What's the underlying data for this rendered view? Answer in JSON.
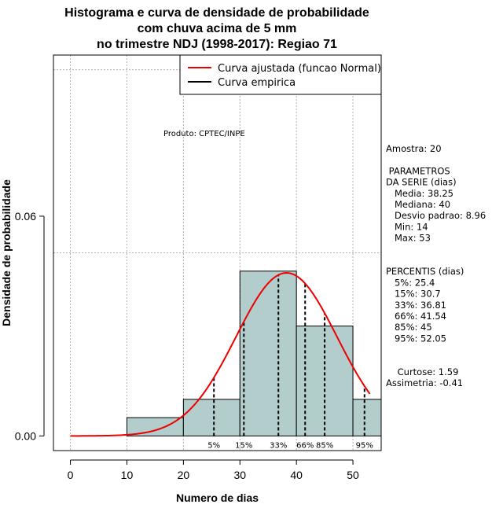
{
  "chart_data": {
    "type": "bar",
    "title_lines": [
      "Histograma e curva de densidade de probabilidade",
      "com chuva acima de 5 mm",
      "no trimestre NDJ (1998-2017): Regiao 71"
    ],
    "xlabel": "Numero de dias",
    "ylabel": "Densidade de probabilidade",
    "xlim": [
      -3,
      55
    ],
    "ylim": [
      -0.004,
      0.104
    ],
    "x_ticks": [
      0,
      10,
      20,
      30,
      40,
      50
    ],
    "x_tick_labels": [
      "0",
      "10",
      "20",
      "30",
      "40",
      "50"
    ],
    "y_ticks": [
      0.0,
      0.06
    ],
    "y_tick_labels": [
      "0.00",
      "0.06"
    ],
    "grid_x": [
      0,
      10,
      20,
      30,
      40,
      50
    ],
    "grid_y": [
      0.05,
      0.1
    ],
    "bins": [
      {
        "x0": 10,
        "x1": 20,
        "density": 0.005
      },
      {
        "x0": 20,
        "x1": 30,
        "density": 0.01
      },
      {
        "x0": 30,
        "x1": 40,
        "density": 0.045
      },
      {
        "x0": 40,
        "x1": 50,
        "density": 0.03
      },
      {
        "x0": 50,
        "x1": 55,
        "density": 0.01
      }
    ],
    "bar_color": "#b3cccc",
    "fitted_curve": {
      "name": "Curva ajustada (funcao Normal)",
      "mean": 38.25,
      "sd": 8.96,
      "x_from": 0,
      "x_to": 53,
      "color": "#ee0000"
    },
    "empirical_curve": {
      "name": "Curva empirica",
      "color": "#000000"
    },
    "legend_position": "top-right",
    "percentile_markers": [
      {
        "x": 25.4,
        "label": "5%"
      },
      {
        "x": 30.7,
        "label": "15%"
      },
      {
        "x": 36.81,
        "label": "33%"
      },
      {
        "x": 41.54,
        "label": "66%"
      },
      {
        "x": 45,
        "label": "85%"
      },
      {
        "x": 52.05,
        "label": "95%"
      }
    ],
    "product_label": "Produto: CPTEC/INPE",
    "stats_lines": [
      "Amostra: 20",
      "",
      " PARAMETROS",
      "DA SERIE (dias)",
      "   Media: 38.25",
      "   Mediana: 40",
      "   Desvio padrao: 8.96",
      "   Min: 14",
      "   Max: 53",
      "",
      "",
      "PERCENTIS (dias)",
      "   5%: 25.4",
      "   15%: 30.7",
      "   33%: 36.81",
      "   66%: 41.54",
      "   85%: 45",
      "   95%: 52.05",
      "",
      "",
      "    Curtose: 1.59",
      "Assimetria: -0.41"
    ]
  }
}
